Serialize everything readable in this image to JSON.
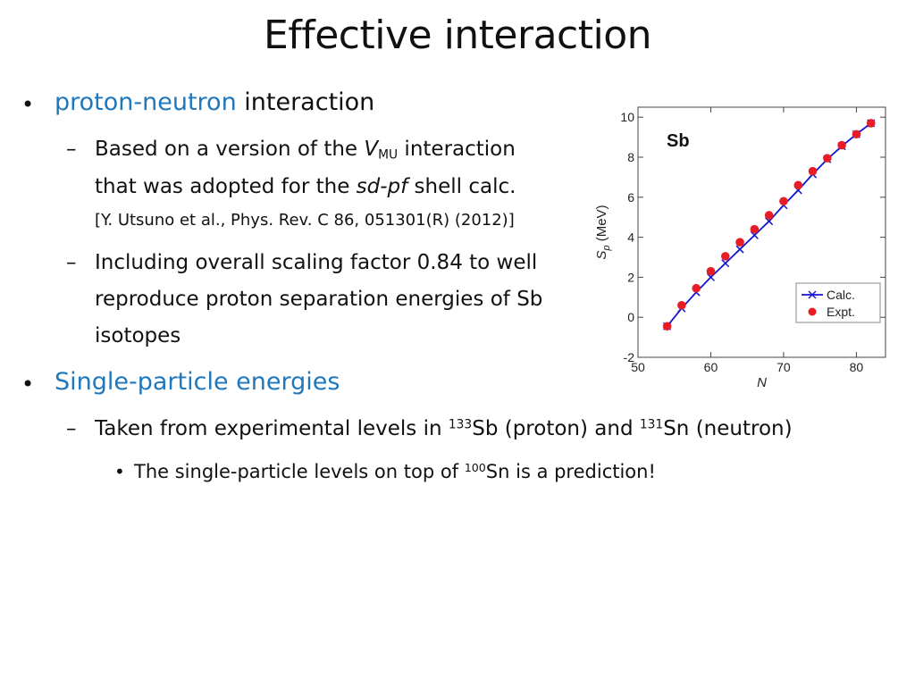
{
  "slide": {
    "title": "Effective interaction",
    "bullet1": {
      "highlight": "proton-neutron",
      "rest": " interaction"
    },
    "sub1": {
      "line1_a": "Based on a version of the ",
      "line1_v": "V",
      "line1_sub": "MU",
      "line1_b": " interaction",
      "line2_a": "that was adopted for the ",
      "line2_i": "sd-pf",
      "line2_b": " shell calc.",
      "ref": "[Y. Utsuno et al., Phys. Rev. C 86, 051301(R) (2012)]"
    },
    "sub2": {
      "line1": "Including overall scaling factor 0.84 to well",
      "line2": "reproduce proton separation energies of Sb",
      "line3": "isotopes"
    },
    "bullet2": "Single-particle energies",
    "sub3": {
      "a": "Taken from experimental levels in ",
      "sup1": "133",
      "b": "Sb (proton) and ",
      "sup2": "131",
      "c": "Sn (neutron)"
    },
    "sub4": {
      "a": "The single-particle levels on top of ",
      "sup": "100",
      "b": "Sn is a prediction!"
    },
    "bullet_glyph": "•",
    "dash_glyph": "–"
  },
  "chart_data": {
    "type": "scatter",
    "annotation": "Sb",
    "xlabel": "N",
    "ylabel_main": "S",
    "ylabel_sub": "p",
    "ylabel_unit": " (MeV)",
    "xlim": [
      50,
      84
    ],
    "ylim": [
      -2,
      10.5
    ],
    "xticks": [
      50,
      60,
      70,
      80
    ],
    "yticks": [
      -2,
      0,
      2,
      4,
      6,
      8,
      10
    ],
    "legend_position": "bottom-right",
    "series": [
      {
        "name": "Calc.",
        "style": "line-cross",
        "color": "#1515D0",
        "x": [
          54,
          56,
          58,
          60,
          62,
          64,
          66,
          68,
          70,
          72,
          74,
          76,
          78,
          80,
          82
        ],
        "y": [
          -0.45,
          0.45,
          1.25,
          2.0,
          2.7,
          3.4,
          4.1,
          4.8,
          5.6,
          6.35,
          7.15,
          7.9,
          8.55,
          9.15,
          9.7
        ]
      },
      {
        "name": "Expt.",
        "style": "dot",
        "color": "#E81C24",
        "x": [
          54,
          56,
          58,
          60,
          62,
          64,
          66,
          68,
          70,
          72,
          74,
          76,
          78,
          80,
          82
        ],
        "y": [
          -0.45,
          0.6,
          1.45,
          2.3,
          3.05,
          3.75,
          4.4,
          5.1,
          5.8,
          6.6,
          7.3,
          7.95,
          8.6,
          9.15,
          9.7
        ]
      }
    ]
  }
}
